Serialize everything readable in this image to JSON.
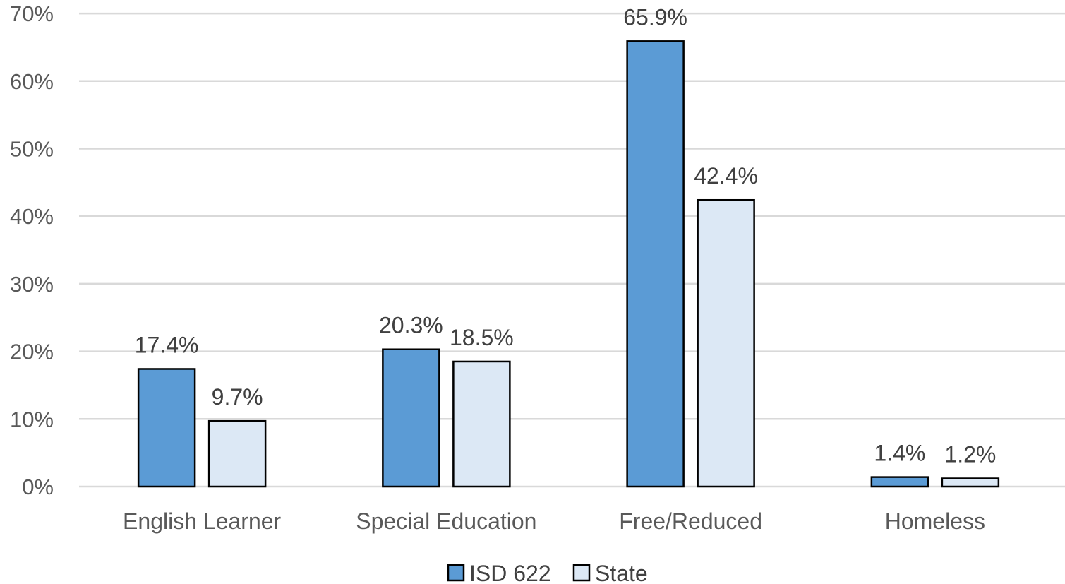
{
  "chart_data": {
    "type": "bar",
    "categories": [
      "English Learner",
      "Special Education",
      "Free/Reduced",
      "Homeless"
    ],
    "series": [
      {
        "name": "ISD 622",
        "values": [
          17.4,
          20.3,
          65.9,
          1.4
        ],
        "labels": [
          "17.4%",
          "20.3%",
          "65.9%",
          "1.4%"
        ],
        "color": "#5b9bd5"
      },
      {
        "name": "State",
        "values": [
          9.7,
          18.5,
          42.4,
          1.2
        ],
        "labels": [
          "9.7%",
          "18.5%",
          "42.4%",
          "1.2%"
        ],
        "color": "#dce8f5"
      }
    ],
    "ylim": [
      0,
      70
    ],
    "yticks": [
      0,
      10,
      20,
      30,
      40,
      50,
      60,
      70
    ],
    "ytick_labels": [
      "0%",
      "10%",
      "20%",
      "30%",
      "40%",
      "50%",
      "60%",
      "70%"
    ],
    "grid": true,
    "legend_position": "bottom"
  }
}
